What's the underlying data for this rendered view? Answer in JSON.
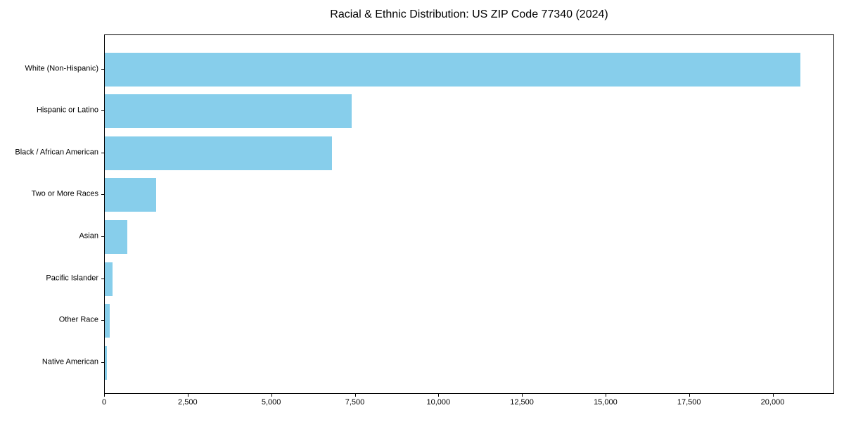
{
  "chart_data": {
    "type": "bar",
    "orientation": "horizontal",
    "title": "Racial & Ethnic Distribution: US ZIP Code 77340 (2024)",
    "categories": [
      "White (Non-Hispanic)",
      "Hispanic or Latino",
      "Black / African American",
      "Two or More Races",
      "Asian",
      "Pacific Islander",
      "Other Race",
      "Native American"
    ],
    "values": [
      20800,
      7390,
      6790,
      1540,
      670,
      220,
      145,
      65
    ],
    "xlabel": "",
    "ylabel": "",
    "xlim": [
      0,
      21840
    ],
    "x_ticks": [
      {
        "value": 0,
        "label": "0"
      },
      {
        "value": 2500,
        "label": "2,500"
      },
      {
        "value": 5000,
        "label": "5,000"
      },
      {
        "value": 7500,
        "label": "7,500"
      },
      {
        "value": 10000,
        "label": "10,000"
      },
      {
        "value": 12500,
        "label": "12,500"
      },
      {
        "value": 15000,
        "label": "15,000"
      },
      {
        "value": 17500,
        "label": "17,500"
      },
      {
        "value": 20000,
        "label": "20,000"
      }
    ],
    "grid": false,
    "legend": "none",
    "bar_color": "#87CEEB",
    "axis_color": "#000000",
    "text_color": "#000000",
    "background_color": "#FFFFFF"
  }
}
